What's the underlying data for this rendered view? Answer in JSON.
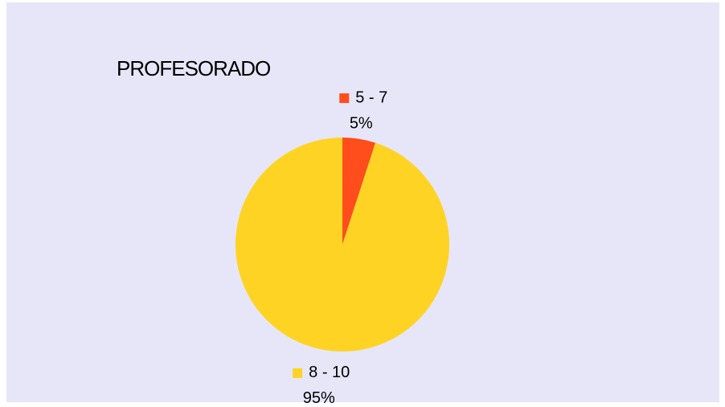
{
  "chart_data": {
    "type": "pie",
    "title": "PROFESORADO",
    "categories": [
      "5 - 7",
      "8 - 10"
    ],
    "values": [
      5,
      95
    ],
    "value_labels": [
      "5%",
      "95%"
    ],
    "colors": [
      "#ff4d1c",
      "#ffd324"
    ]
  }
}
